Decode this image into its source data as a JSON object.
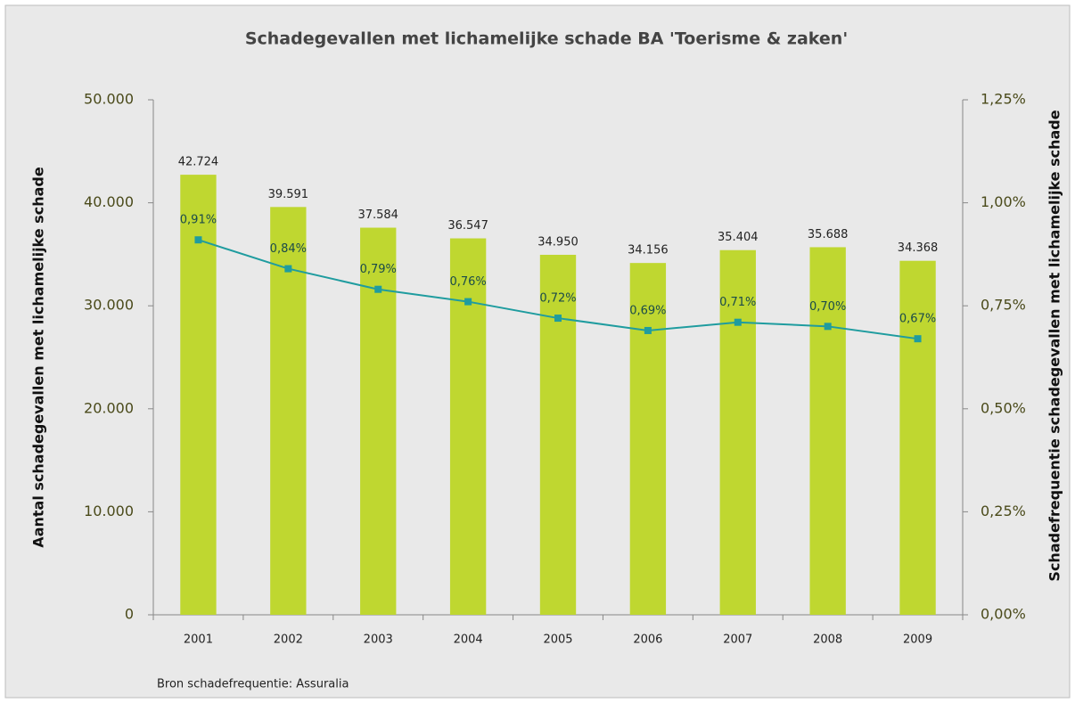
{
  "chart_data": {
    "type": "bar",
    "title": "Schadegevallen met lichamelijke schade BA 'Toerisme & zaken'",
    "ylabel": "Aantal schadegevallen met lichamelijke schade",
    "y2label": "Schadefrequentie schadegevallen met lichamelijke schade",
    "note": "Bron schadefrequentie:  Assuralia",
    "categories": [
      "2001",
      "2002",
      "2003",
      "2004",
      "2005",
      "2006",
      "2007",
      "2008",
      "2009"
    ],
    "series": [
      {
        "color": "#bfd730",
        "values": [
          42724,
          39591,
          37584,
          36547,
          34950,
          34156,
          35404,
          35688,
          34368
        ],
        "value_labels": [
          "42.724",
          "39.591",
          "37.584",
          "36.547",
          "34.950",
          "34.156",
          "35.404",
          "35.688",
          "34.368"
        ]
      },
      {
        "type": "line",
        "axis": "y2",
        "color": "#1f9c9f",
        "values": [
          0.91,
          0.84,
          0.79,
          0.76,
          0.72,
          0.69,
          0.71,
          0.7,
          0.67
        ],
        "value_labels": [
          "0,91%",
          "0,84%",
          "0,79%",
          "0,76%",
          "0,72%",
          "0,69%",
          "0,71%",
          "0,70%",
          "0,67%"
        ]
      }
    ],
    "ylim": [
      0,
      50000
    ],
    "yticks": [
      0,
      {
        "value": 10000,
        "label": "10.000"
      },
      {
        "value": 20000,
        "label": "20.000"
      },
      {
        "value": 30000,
        "label": "30.000"
      },
      {
        "value": 40000,
        "label": "40.000"
      },
      {
        "value": 50000,
        "label": "50.000"
      }
    ],
    "y2lim": [
      0,
      1.25
    ],
    "y2ticks": [
      {
        "value": 0,
        "label": "0,00%"
      },
      {
        "value": 0.25,
        "label": "0,25%"
      },
      {
        "value": 0.5,
        "label": "0,50%"
      },
      {
        "value": 0.75,
        "label": "0,75%"
      },
      {
        "value": 1.0,
        "label": "1,00%"
      },
      {
        "value": 1.25,
        "label": "1,25%"
      }
    ],
    "grid": false
  }
}
